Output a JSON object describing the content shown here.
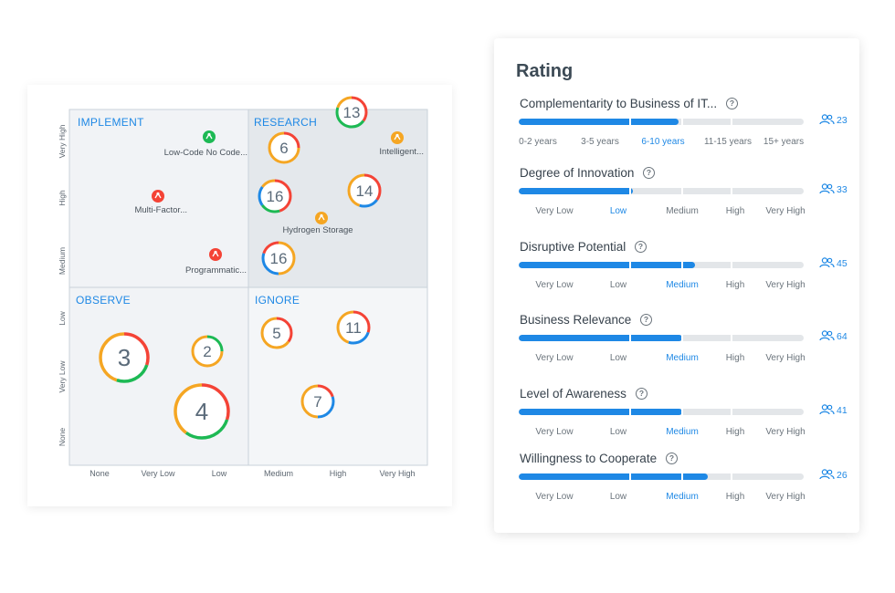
{
  "matrix": {
    "quadrants": {
      "implement": "IMPLEMENT",
      "research": "RESEARCH",
      "observe": "OBSERVE",
      "ignore": "IGNORE"
    },
    "y_top_labels": [
      "Very High",
      "High",
      "Medium"
    ],
    "y_bottom_labels": [
      "Low",
      "Very Low",
      "None"
    ],
    "x_labels": [
      "None",
      "Very Low",
      "Low",
      "Medium",
      "High",
      "Very High"
    ],
    "bubbles": [
      "13",
      "6",
      "16",
      "14",
      "16",
      "3",
      "2",
      "4",
      "5",
      "11",
      "7"
    ],
    "technologies": {
      "low_code": "Low-Code No Code...",
      "multi_factor": "Multi-Factor...",
      "programmatic": "Programmatic...",
      "intelligent": "Intelligent...",
      "hydrogen": "Hydrogen Storage"
    },
    "colors": {
      "red": "#f44336",
      "green": "#1db954",
      "orange": "#f5a623",
      "blue": "#1e88e5"
    }
  },
  "rating": {
    "title": "Rating",
    "metrics": [
      {
        "name": "Complementarity to Business of IT...",
        "voters": "23",
        "fill_fraction": 0.56,
        "active": 2,
        "scale": [
          "0-2 years",
          "3-5 years",
          "6-10 years",
          "11-15 years",
          "15+ years"
        ]
      },
      {
        "name": "Degree of Innovation",
        "voters": "33",
        "fill_fraction": 0.4,
        "active": 1,
        "scale": [
          "Very Low",
          "Low",
          "Medium",
          "High",
          "Very High"
        ]
      },
      {
        "name": "Disruptive Potential",
        "voters": "45",
        "fill_fraction": 0.62,
        "active": 2,
        "scale": [
          "Very Low",
          "Low",
          "Medium",
          "High",
          "Very High"
        ]
      },
      {
        "name": "Business Relevance",
        "voters": "64",
        "fill_fraction": 0.575,
        "active": 2,
        "scale": [
          "Very Low",
          "Low",
          "Medium",
          "High",
          "Very High"
        ]
      },
      {
        "name": "Level of Awareness",
        "voters": "41",
        "fill_fraction": 0.575,
        "active": 2,
        "scale": [
          "Very Low",
          "Low",
          "Medium",
          "High",
          "Very High"
        ]
      },
      {
        "name": "Willingness to Cooperate",
        "voters": "26",
        "fill_fraction": 0.665,
        "active": 2,
        "scale": [
          "Very Low",
          "Low",
          "Medium",
          "High",
          "Very High"
        ]
      }
    ]
  }
}
